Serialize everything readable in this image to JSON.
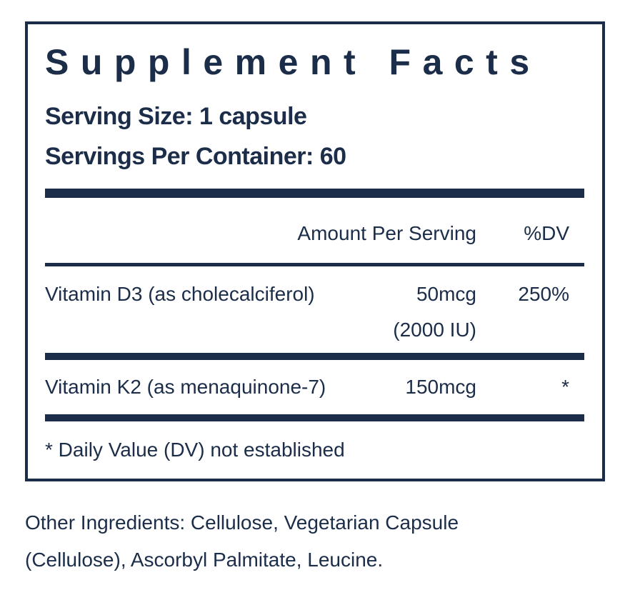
{
  "title": "Supplement Facts",
  "serving_size": "Serving Size: 1 capsule",
  "servings_per_container": "Servings Per Container: 60",
  "table": {
    "header": [
      "Amount Per Serving",
      "%DV"
    ],
    "rows": [
      {
        "name": "Vitamin D3 (as cholecalciferol)",
        "amount": [
          "50mcg",
          "(2000 IU)"
        ],
        "dv": "250%"
      },
      {
        "name": "Vitamin K2 (as menaquinone-7)",
        "amount": [
          "150mcg"
        ],
        "dv": "*"
      }
    ]
  },
  "footnote": "* Daily Value (DV) not established",
  "other_ingredients": [
    "Other Ingredients: Cellulose, Vegetarian Capsule",
    "(Cellulose), Ascorbyl Palmitate, Leucine."
  ]
}
